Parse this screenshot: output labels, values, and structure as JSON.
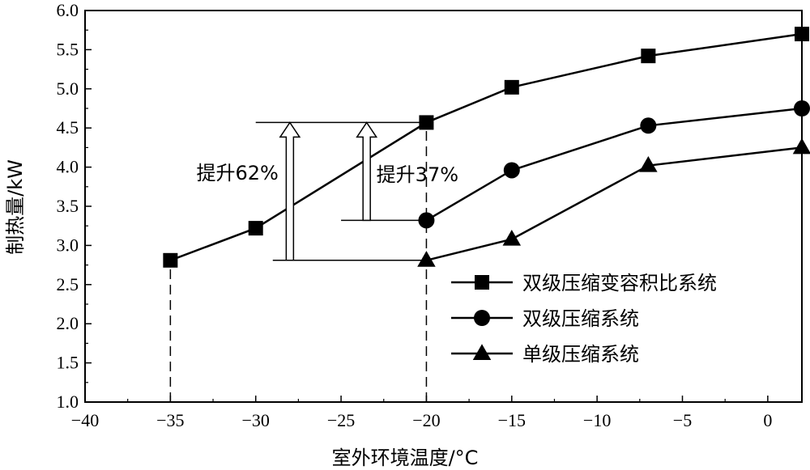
{
  "chart_data": {
    "type": "line",
    "xlabel": "室外环境温度/°C",
    "ylabel": "制热量/kW",
    "xlim": [
      -40,
      2
    ],
    "ylim": [
      1.0,
      6.0
    ],
    "xticks": [
      -40,
      -35,
      -30,
      -25,
      -20,
      -15,
      -10,
      -5,
      0
    ],
    "xtick_labels": [
      "−40",
      "−35",
      "−30",
      "−25",
      "−20",
      "−15",
      "−10",
      "−5",
      "0"
    ],
    "yticks": [
      1.0,
      1.5,
      2.0,
      2.5,
      3.0,
      3.5,
      4.0,
      4.5,
      5.0,
      5.5,
      6.0
    ],
    "ytick_labels": [
      "1.0",
      "1.5",
      "2.0",
      "2.5",
      "3.0",
      "3.5",
      "4.0",
      "4.5",
      "5.0",
      "5.5",
      "6.0"
    ],
    "grid": false,
    "legend_position": "right",
    "series": [
      {
        "name": "双级压缩变容积比系统",
        "marker": "square",
        "x": [
          -35,
          -30,
          -20,
          -15,
          -7,
          2
        ],
        "y": [
          2.81,
          3.22,
          4.57,
          5.02,
          5.42,
          5.7
        ]
      },
      {
        "name": "双级压缩系统",
        "marker": "circle",
        "x": [
          -20,
          -15,
          -7,
          2
        ],
        "y": [
          3.32,
          3.96,
          4.53,
          4.75
        ]
      },
      {
        "name": "单级压缩系统",
        "marker": "triangle",
        "x": [
          -20,
          -15,
          -7,
          2
        ],
        "y": [
          2.81,
          3.08,
          4.02,
          4.25
        ]
      }
    ],
    "annotations": [
      {
        "text": "提升62%",
        "x": -28,
        "from_y": 2.81,
        "to_y": 4.57
      },
      {
        "text": "提升37%",
        "x": -23.5,
        "from_y": 3.32,
        "to_y": 4.57
      }
    ],
    "reference_lines": [
      {
        "type": "vertical",
        "x": -35,
        "from_y": 1.0,
        "to_y": 2.81,
        "style": "dashed"
      },
      {
        "type": "vertical",
        "x": -20,
        "from_y": 1.0,
        "to_y": 4.57,
        "style": "dashed"
      },
      {
        "type": "horizontal",
        "y": 4.57,
        "from_x": -30,
        "to_x": -20
      },
      {
        "type": "horizontal",
        "y": 3.32,
        "from_x": -25,
        "to_x": -20
      },
      {
        "type": "horizontal",
        "y": 2.81,
        "from_x": -29,
        "to_x": -20
      }
    ]
  }
}
